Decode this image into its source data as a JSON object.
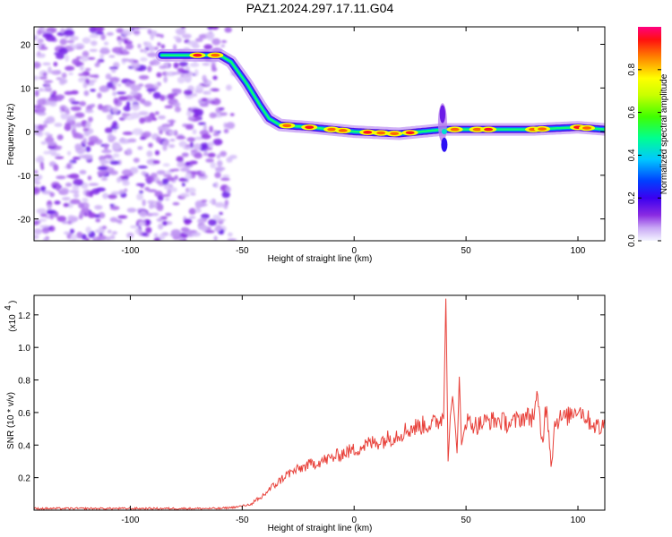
{
  "title": "PAZ1.2024.297.17.11.G04",
  "chart_data": [
    {
      "type": "heatmap",
      "title": "PAZ1.2024.297.17.11.G04",
      "xlabel": "Height of straight line (km)",
      "ylabel": "Frequency (Hz)",
      "xlim": [
        -143,
        112
      ],
      "ylim": [
        -25,
        24
      ],
      "x_ticks": [
        -100,
        -50,
        0,
        50,
        100
      ],
      "y_ticks": [
        -20,
        -10,
        0,
        10,
        20
      ],
      "colorbar": {
        "label": "Normalized spectral amplitude",
        "range": [
          0,
          1
        ],
        "ticks": [
          0.0,
          0.2,
          0.4,
          0.6,
          0.8
        ],
        "colormap": [
          "#f0f0f8",
          "#b78cf0",
          "#6a00f0",
          "#0000ff",
          "#00c8ff",
          "#00ff80",
          "#80ff00",
          "#ffff00",
          "#ff8000",
          "#ff0000",
          "#ff0080"
        ]
      },
      "ridge": {
        "description_points_x": [
          -85,
          -60,
          -55,
          -48,
          -42,
          -38,
          -33,
          -20,
          0,
          20,
          40,
          45,
          60,
          80,
          100,
          112
        ],
        "description_points_y": [
          17.5,
          17.5,
          16,
          11,
          6,
          3,
          1.5,
          1,
          0,
          -0.5,
          0.5,
          0.5,
          0.5,
          0.5,
          1,
          0.5
        ]
      }
    },
    {
      "type": "line",
      "xlabel": "Height of straight line (km)",
      "ylabel": "SNR (10 * v/v)",
      "y_multiplier_label": "(x10",
      "y_multiplier_exp": "4",
      "xlim": [
        -143,
        112
      ],
      "ylim": [
        0,
        1.32
      ],
      "x_ticks": [
        -100,
        -50,
        0,
        50,
        100
      ],
      "y_ticks": [
        0.2,
        0.4,
        0.6,
        0.8,
        1.0,
        1.2
      ],
      "series": [
        {
          "color": "#e8413a",
          "x": [
            -143,
            -120,
            -100,
            -80,
            -60,
            -52,
            -45,
            -42,
            -40,
            -35,
            -30,
            -25,
            -20,
            -15,
            -10,
            -5,
            0,
            5,
            10,
            15,
            20,
            25,
            30,
            35,
            38,
            40,
            41,
            42,
            43,
            44,
            45,
            46,
            47,
            48,
            50,
            55,
            60,
            65,
            70,
            75,
            80,
            82,
            84,
            86,
            88,
            90,
            95,
            100,
            105,
            110,
            112
          ],
          "y": [
            0.01,
            0.01,
            0.01,
            0.01,
            0.01,
            0.02,
            0.04,
            0.07,
            0.1,
            0.16,
            0.22,
            0.25,
            0.28,
            0.3,
            0.32,
            0.35,
            0.37,
            0.4,
            0.42,
            0.44,
            0.47,
            0.5,
            0.52,
            0.53,
            0.55,
            0.58,
            1.3,
            0.3,
            0.58,
            0.7,
            0.55,
            0.35,
            0.82,
            0.4,
            0.55,
            0.52,
            0.55,
            0.55,
            0.53,
            0.57,
            0.58,
            0.68,
            0.42,
            0.67,
            0.3,
            0.56,
            0.57,
            0.63,
            0.55,
            0.5,
            0.53
          ]
        }
      ]
    }
  ]
}
